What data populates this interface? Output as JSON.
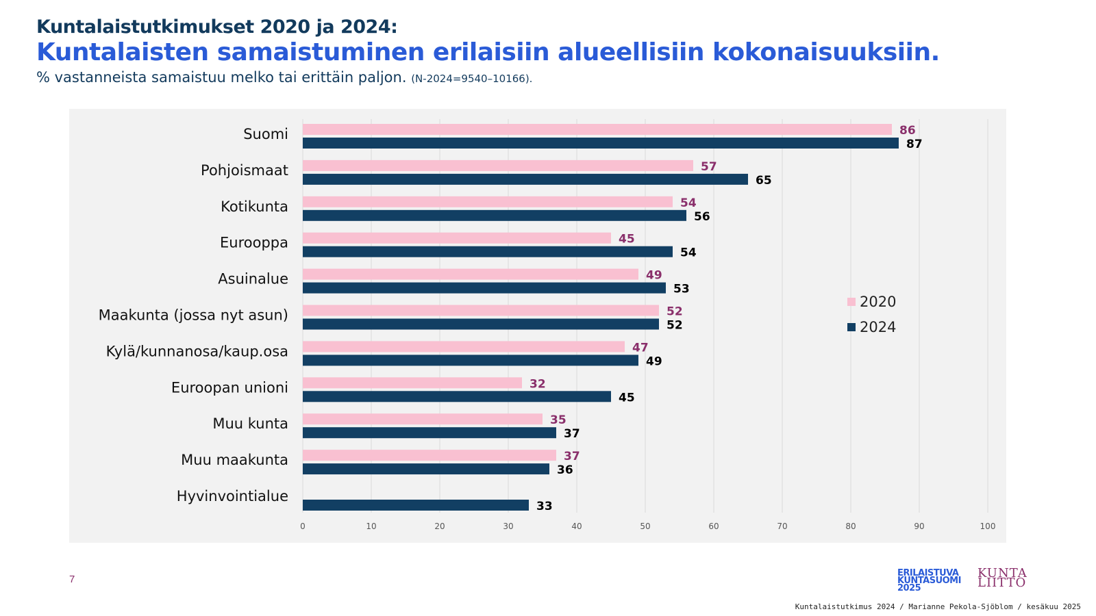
{
  "header": {
    "title_small": "Kuntalaistutkimukset 2020 ja 2024:",
    "title_main": "Kuntalaisten samaistuminen erilaisiin alueellisiin kokonaisuuksiin.",
    "subtitle": "% vastanneista samaistuu melko tai erittäin paljon.",
    "subtitle_note": "(N-2024=9540–10166)."
  },
  "chart_data": {
    "type": "bar",
    "orientation": "horizontal",
    "categories": [
      "Suomi",
      "Pohjoismaat",
      "Kotikunta",
      "Eurooppa",
      "Asuinalue",
      "Maakunta (jossa nyt asun)",
      "Kylä/kunnanosa/kaup.osa",
      "Euroopan unioni",
      "Muu kunta",
      "Muu maakunta",
      "Hyvinvointialue"
    ],
    "series": [
      {
        "name": "2020",
        "color": "#f9c0d1",
        "label_color": "#8a2f6b",
        "values": [
          86,
          57,
          54,
          45,
          49,
          52,
          47,
          32,
          35,
          37,
          null
        ]
      },
      {
        "name": "2024",
        "color": "#123f63",
        "label_color": "#000000",
        "values": [
          87,
          65,
          56,
          54,
          53,
          52,
          49,
          45,
          37,
          36,
          33
        ]
      }
    ],
    "xlim": [
      0,
      100
    ],
    "xticks": [
      0,
      10,
      20,
      30,
      40,
      50,
      60,
      70,
      80,
      90,
      100
    ],
    "grid": true,
    "legend_position": "right"
  },
  "footer": {
    "page_number": "7",
    "logo_line1": "ERILAISTUVA",
    "logo_line2": "KUNTASUOMI",
    "logo_line3": "2025",
    "logo2_line1": "KUNTA",
    "logo2_line2": "LIITTO",
    "credit": "Kuntalaistutkimus 2024 / Marianne Pekola-Sjöblom / kesäkuu 2025"
  }
}
